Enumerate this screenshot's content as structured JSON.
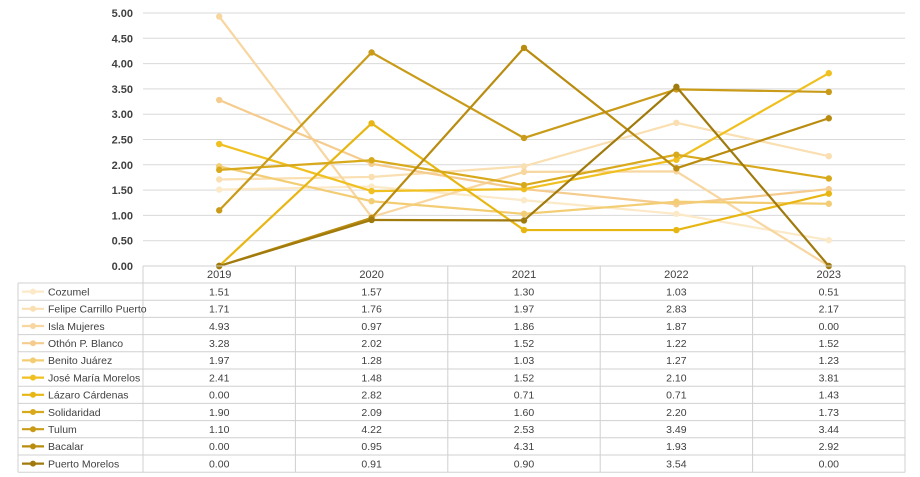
{
  "chart_data": {
    "type": "line",
    "title": "",
    "xlabel": "",
    "ylabel": "",
    "x": [
      "2019",
      "2020",
      "2021",
      "2022",
      "2023"
    ],
    "ylim": [
      0,
      5
    ],
    "y_ticks": [
      "0.00",
      "0.50",
      "1.00",
      "1.50",
      "2.00",
      "2.50",
      "3.00",
      "3.50",
      "4.00",
      "4.50",
      "5.00"
    ],
    "grid": true,
    "legend": "data-table-below",
    "series": [
      {
        "name": "Cozumel",
        "color": "#FBE9C8",
        "values": [
          1.51,
          1.57,
          1.3,
          1.03,
          0.51
        ],
        "labels": [
          "1.51",
          "1.57",
          "1.30",
          "1.03",
          "0.51"
        ]
      },
      {
        "name": "Felipe Carrillo Puerto",
        "color": "#F9DFB1",
        "values": [
          1.71,
          1.76,
          1.97,
          2.83,
          2.17
        ],
        "labels": [
          "1.71",
          "1.76",
          "1.97",
          "2.83",
          "2.17"
        ]
      },
      {
        "name": "Isla Mujeres",
        "color": "#F8D6A0",
        "values": [
          4.93,
          0.97,
          1.86,
          1.87,
          0.0
        ],
        "labels": [
          "4.93",
          "0.97",
          "1.86",
          "1.87",
          "0.00"
        ]
      },
      {
        "name": "Othón P. Blanco",
        "color": "#F5CC8E",
        "values": [
          3.28,
          2.02,
          1.52,
          1.22,
          1.52
        ],
        "labels": [
          "3.28",
          "2.02",
          "1.52",
          "1.22",
          "1.52"
        ]
      },
      {
        "name": "Benito Juárez",
        "color": "#F3CD74",
        "values": [
          1.97,
          1.28,
          1.03,
          1.27,
          1.23
        ],
        "labels": [
          "1.97",
          "1.28",
          "1.03",
          "1.27",
          "1.23"
        ]
      },
      {
        "name": "José María Morelos",
        "color": "#F0C020",
        "values": [
          2.41,
          1.48,
          1.52,
          2.1,
          3.81
        ],
        "labels": [
          "2.41",
          "1.48",
          "1.52",
          "2.10",
          "3.81"
        ]
      },
      {
        "name": "Lázaro Cárdenas",
        "color": "#E8B612",
        "values": [
          0.0,
          2.82,
          0.71,
          0.71,
          1.43
        ],
        "labels": [
          "0.00",
          "2.82",
          "0.71",
          "0.71",
          "1.43"
        ]
      },
      {
        "name": "Solidaridad",
        "color": "#D9A91C",
        "values": [
          1.9,
          2.09,
          1.6,
          2.2,
          1.73
        ],
        "labels": [
          "1.90",
          "2.09",
          "1.60",
          "2.20",
          "1.73"
        ]
      },
      {
        "name": "Tulum",
        "color": "#C99B18",
        "values": [
          1.1,
          4.22,
          2.53,
          3.49,
          3.44
        ],
        "labels": [
          "1.10",
          "4.22",
          "2.53",
          "3.49",
          "3.44"
        ]
      },
      {
        "name": "Bacalar",
        "color": "#B98C10",
        "values": [
          0.0,
          0.95,
          4.31,
          1.93,
          2.92
        ],
        "labels": [
          "0.00",
          "0.95",
          "4.31",
          "1.93",
          "2.92"
        ]
      },
      {
        "name": "Puerto Morelos",
        "color": "#A07A0C",
        "values": [
          0.0,
          0.91,
          0.9,
          3.54,
          0.0
        ],
        "labels": [
          "0.00",
          "0.91",
          "0.90",
          "3.54",
          "0.00"
        ]
      }
    ]
  }
}
